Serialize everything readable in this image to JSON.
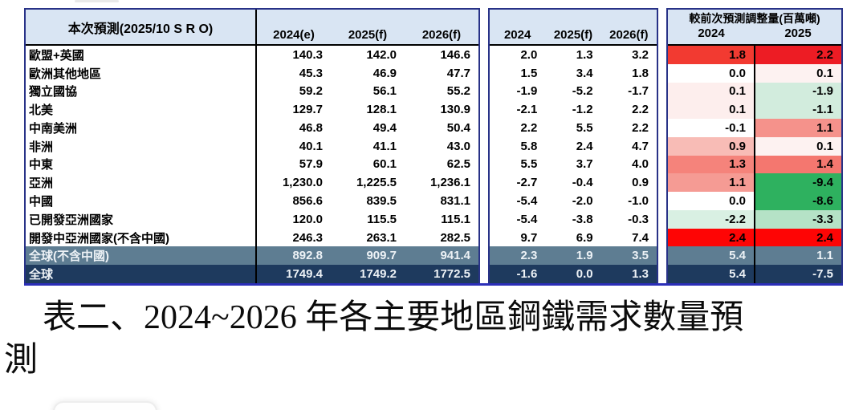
{
  "table": {
    "panel1": {
      "title": "本次預測(2025/10 S R O)",
      "columns": [
        "2024(e)",
        "2025(f)",
        "2026(f)"
      ]
    },
    "panel2": {
      "columns": [
        "2024",
        "2025(f)",
        "2026(f)"
      ]
    },
    "panel3": {
      "title": "較前次預測調整量(百萬噸)",
      "columns": [
        "2024",
        "2025"
      ]
    },
    "rows": [
      {
        "label": "歐盟+英國",
        "demand": [
          "140.3",
          "142.0",
          "146.6"
        ],
        "growth": [
          "2.0",
          "1.3",
          "3.2"
        ],
        "adjust": [
          "1.8",
          "2.2"
        ],
        "adjust_colors": [
          "#f23a31",
          "#ed1c24"
        ]
      },
      {
        "label": "歐洲其他地區",
        "demand": [
          "45.3",
          "46.9",
          "47.7"
        ],
        "growth": [
          "1.5",
          "3.4",
          "1.8"
        ],
        "adjust": [
          "0.0",
          "0.1"
        ],
        "adjust_colors": [
          "#ffffff",
          "#fdf2f1"
        ]
      },
      {
        "label": "獨立國協",
        "demand": [
          "59.2",
          "56.1",
          "55.2"
        ],
        "growth": [
          "-1.9",
          "-5.2",
          "-1.7"
        ],
        "adjust": [
          "0.1",
          "-1.9"
        ],
        "adjust_colors": [
          "#fdeeed",
          "#d2ecdd"
        ]
      },
      {
        "label": "北美",
        "demand": [
          "129.7",
          "128.1",
          "130.9"
        ],
        "growth": [
          "-2.1",
          "-1.2",
          "2.2"
        ],
        "adjust": [
          "0.1",
          "-1.1"
        ],
        "adjust_colors": [
          "#fdeeed",
          "#d2ecdd"
        ]
      },
      {
        "label": "中南美洲",
        "demand": [
          "46.8",
          "49.4",
          "50.4"
        ],
        "growth": [
          "2.2",
          "5.5",
          "2.2"
        ],
        "adjust": [
          "-0.1",
          "1.1"
        ],
        "adjust_colors": [
          "#ffffff",
          "#f5928b"
        ]
      },
      {
        "label": "非洲",
        "demand": [
          "40.1",
          "41.1",
          "43.0"
        ],
        "growth": [
          "5.8",
          "2.4",
          "4.7"
        ],
        "adjust": [
          "0.9",
          "0.1"
        ],
        "adjust_colors": [
          "#f8bcb6",
          "#fdf2f1"
        ]
      },
      {
        "label": "中東",
        "demand": [
          "57.9",
          "60.1",
          "62.5"
        ],
        "growth": [
          "5.5",
          "3.7",
          "4.0"
        ],
        "adjust": [
          "1.3",
          "1.4"
        ],
        "adjust_colors": [
          "#f5837b",
          "#f4776f"
        ]
      },
      {
        "label": "亞洲",
        "demand": [
          "1,230.0",
          "1,225.5",
          "1,236.1"
        ],
        "growth": [
          "-2.7",
          "-0.4",
          "0.9"
        ],
        "adjust": [
          "1.1",
          "-9.4"
        ],
        "adjust_colors": [
          "#f59b94",
          "#2eb15f"
        ]
      },
      {
        "label": "中國",
        "demand": [
          "856.6",
          "839.5",
          "831.1"
        ],
        "growth": [
          "-5.4",
          "-2.0",
          "-1.0"
        ],
        "adjust": [
          "0.0",
          "-8.6"
        ],
        "adjust_colors": [
          "#ffffff",
          "#2eb15f"
        ]
      },
      {
        "label": "已開發亞洲國家",
        "demand": [
          "120.0",
          "115.5",
          "115.1"
        ],
        "growth": [
          "-5.4",
          "-3.8",
          "-0.3"
        ],
        "adjust": [
          "-2.2",
          "-3.3"
        ],
        "adjust_colors": [
          "#d9f0e3",
          "#b5e2c6"
        ]
      },
      {
        "label": "開發中亞洲國家(不含中國)",
        "demand": [
          "246.3",
          "263.1",
          "282.5"
        ],
        "growth": [
          "9.7",
          "6.9",
          "7.4"
        ],
        "adjust": [
          "2.4",
          "2.4"
        ],
        "adjust_colors": [
          "#fe0505",
          "#fe0505"
        ]
      },
      {
        "label": "全球(不含中國)",
        "demand": [
          "892.8",
          "909.7",
          "941.4"
        ],
        "growth": [
          "2.3",
          "1.9",
          "3.5"
        ],
        "adjust": [
          "5.4",
          "1.1"
        ],
        "band": "world_ex_china"
      },
      {
        "label": "全球",
        "demand": [
          "1749.4",
          "1749.2",
          "1772.5"
        ],
        "growth": [
          "-1.6",
          "0.0",
          "1.3"
        ],
        "adjust": [
          "5.4",
          "-7.5"
        ],
        "band": "world"
      }
    ]
  },
  "caption": {
    "line1": "表二、2024~2026 年各主要地區鋼鐵需求數量預",
    "line2": "測"
  },
  "colors": {
    "header_bg": "#d9e5f3",
    "panel_border": "#283287",
    "bottom_border": "#2b2eb8",
    "divider": "#000000",
    "world_ex_china_bg": "#5e7d92",
    "world_bg": "#1e3a5e",
    "band_text": "#edf2f6"
  }
}
